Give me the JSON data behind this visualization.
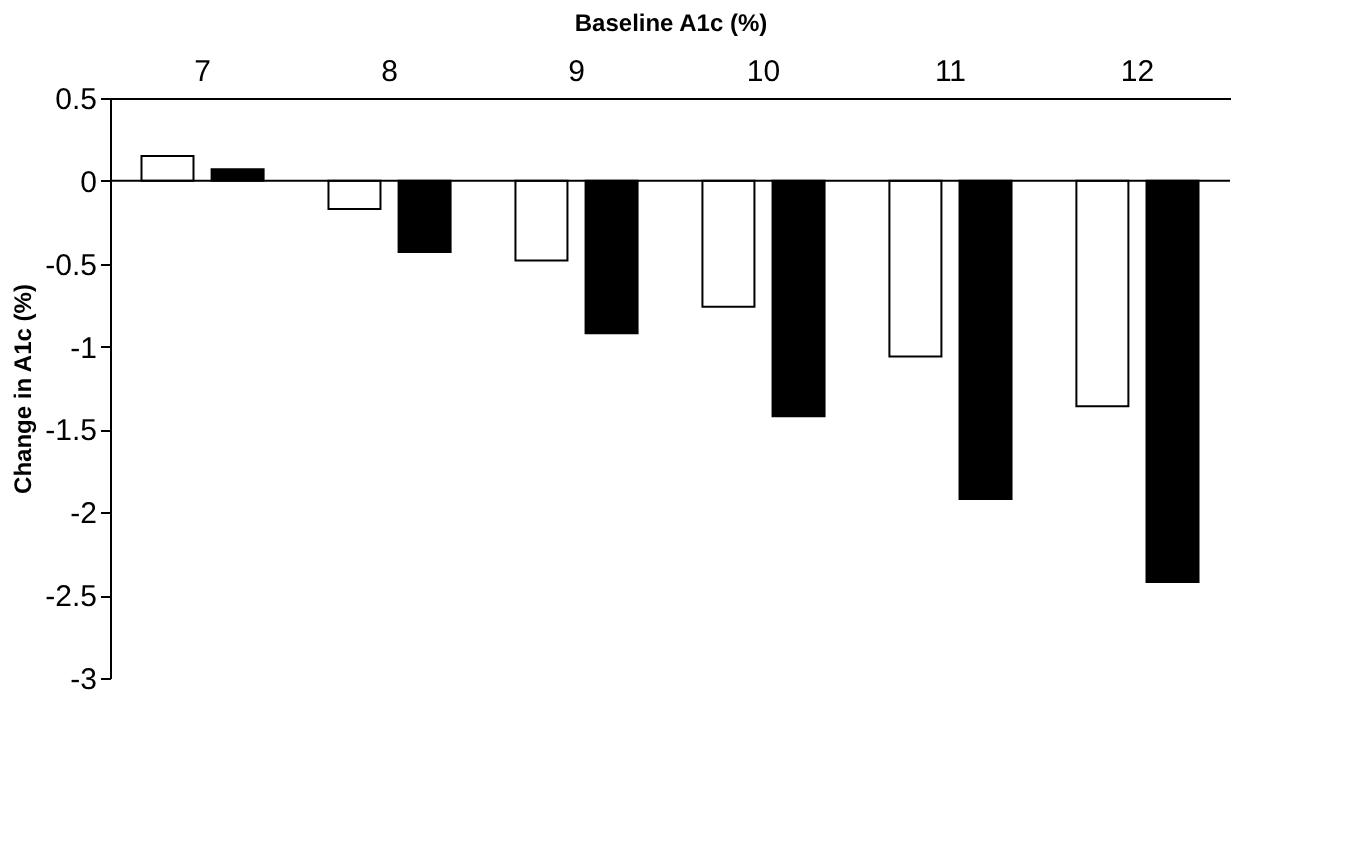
{
  "chart_data": {
    "type": "bar",
    "xlabel": "Baseline A1c (%)",
    "ylabel": "Change in A1c (%)",
    "categories": [
      "7",
      "8",
      "9",
      "10",
      "11",
      "12"
    ],
    "series": [
      {
        "color": "#ffffff",
        "values": [
          0.15,
          -0.17,
          -0.48,
          -0.76,
          -1.06,
          -1.36
        ]
      },
      {
        "color": "#000000",
        "values": [
          0.07,
          -0.43,
          -0.92,
          -1.42,
          -1.92,
          -2.42
        ]
      }
    ],
    "ylim": [
      -3,
      0.5
    ],
    "yticks": [
      -3,
      -2.5,
      -2,
      -1.5,
      -1,
      -0.5,
      0,
      0.5
    ],
    "ref_lines": [
      {
        "axis": "y",
        "value": 0
      }
    ],
    "grid": false,
    "legend": false
  }
}
